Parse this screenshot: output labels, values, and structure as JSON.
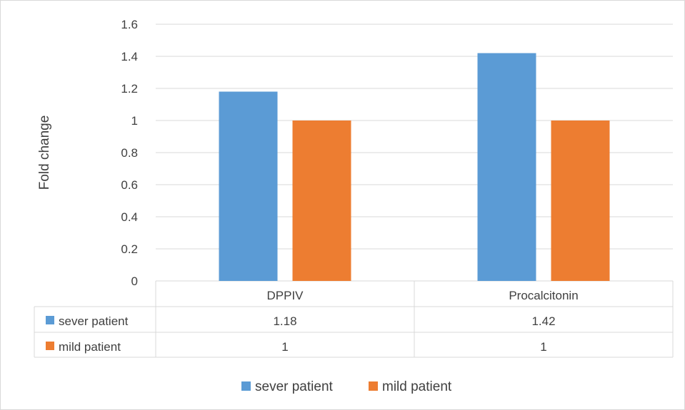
{
  "chart_data": {
    "type": "bar",
    "categories": [
      "DPPIV",
      "Procalcitonin"
    ],
    "series": [
      {
        "name": "sever patient",
        "values": [
          1.18,
          1.42
        ],
        "color": "#5b9bd5"
      },
      {
        "name": "mild patient",
        "values": [
          1,
          1
        ],
        "color": "#ed7d31"
      }
    ],
    "table_values": [
      [
        "1.18",
        "1.42"
      ],
      [
        "1",
        "1"
      ]
    ],
    "ylabel": "Fold change",
    "ylim": [
      0,
      1.6
    ],
    "yticks": [
      "0",
      "0.2",
      "0.4",
      "0.6",
      "0.8",
      "1",
      "1.2",
      "1.4",
      "1.6"
    ],
    "grid": true,
    "legend_position": "bottom",
    "data_table": true
  }
}
